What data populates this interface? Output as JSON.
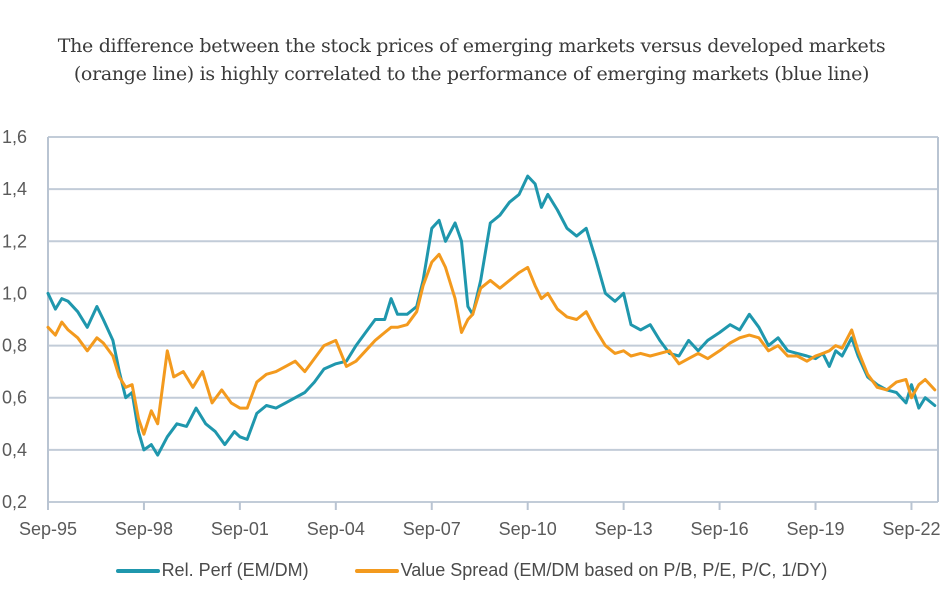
{
  "title_lines": [
    "The difference between the stock prices of emerging markets versus developed markets",
    "(orange line) is highly correlated to the performance of emerging markets (blue line)"
  ],
  "colors": {
    "rel_perf": "#1f97ad",
    "value_spread": "#f39a1e",
    "grid": "#c2ccd8",
    "axis": "#b9c4d2"
  },
  "chart_data": {
    "type": "line",
    "title": "The difference between the stock prices of emerging markets versus developed markets (orange line) is highly correlated to the performance of emerging markets (blue line)",
    "xlabel": "",
    "ylabel": "",
    "ylim": [
      0.2,
      1.6
    ],
    "yticks": [
      "0,2",
      "0,4",
      "0,6",
      "0,8",
      "1,0",
      "1,2",
      "1,4",
      "1,6"
    ],
    "ytick_values": [
      0.2,
      0.4,
      0.6,
      0.8,
      1.0,
      1.2,
      1.4,
      1.6
    ],
    "xlim": [
      1995.67,
      2023.5
    ],
    "xticks": [
      "Sep-95",
      "Sep-98",
      "Sep-01",
      "Sep-04",
      "Sep-07",
      "Sep-10",
      "Sep-13",
      "Sep-16",
      "Sep-19",
      "Sep-22"
    ],
    "xtick_values": [
      1995.67,
      1998.67,
      2001.67,
      2004.67,
      2007.67,
      2010.67,
      2013.67,
      2016.67,
      2019.67,
      2022.67
    ],
    "grid": "horizontal",
    "legend_position": "bottom",
    "series": [
      {
        "name": "Rel. Perf (EM/DM)",
        "color": "#1f97ad",
        "x": [
          1995.67,
          1995.9,
          1996.1,
          1996.3,
          1996.6,
          1996.9,
          1997.2,
          1997.4,
          1997.7,
          1997.9,
          1998.1,
          1998.3,
          1998.5,
          1998.67,
          1998.9,
          1999.1,
          1999.4,
          1999.7,
          2000.0,
          2000.3,
          2000.6,
          2000.9,
          2001.2,
          2001.5,
          2001.67,
          2001.9,
          2002.2,
          2002.5,
          2002.8,
          2003.1,
          2003.4,
          2003.7,
          2004.0,
          2004.3,
          2004.67,
          2005.0,
          2005.3,
          2005.6,
          2005.9,
          2006.2,
          2006.4,
          2006.6,
          2006.9,
          2007.2,
          2007.4,
          2007.67,
          2007.9,
          2008.1,
          2008.4,
          2008.6,
          2008.8,
          2008.95,
          2009.2,
          2009.5,
          2009.8,
          2010.1,
          2010.4,
          2010.67,
          2010.9,
          2011.1,
          2011.3,
          2011.6,
          2011.9,
          2012.2,
          2012.5,
          2012.8,
          2013.1,
          2013.4,
          2013.67,
          2013.9,
          2014.2,
          2014.5,
          2014.8,
          2015.1,
          2015.4,
          2015.7,
          2016.0,
          2016.3,
          2016.67,
          2017.0,
          2017.3,
          2017.6,
          2017.9,
          2018.2,
          2018.5,
          2018.8,
          2019.1,
          2019.4,
          2019.67,
          2019.9,
          2020.1,
          2020.3,
          2020.5,
          2020.8,
          2021.0,
          2021.3,
          2021.6,
          2021.9,
          2022.2,
          2022.5,
          2022.67,
          2022.9,
          2023.1,
          2023.4
        ],
        "values": [
          1.0,
          0.94,
          0.98,
          0.97,
          0.93,
          0.87,
          0.95,
          0.9,
          0.82,
          0.7,
          0.6,
          0.62,
          0.47,
          0.4,
          0.42,
          0.38,
          0.45,
          0.5,
          0.49,
          0.56,
          0.5,
          0.47,
          0.42,
          0.47,
          0.45,
          0.44,
          0.54,
          0.57,
          0.56,
          0.58,
          0.6,
          0.62,
          0.66,
          0.71,
          0.73,
          0.74,
          0.8,
          0.85,
          0.9,
          0.9,
          0.98,
          0.92,
          0.92,
          0.95,
          1.05,
          1.25,
          1.28,
          1.2,
          1.27,
          1.2,
          0.95,
          0.92,
          1.05,
          1.27,
          1.3,
          1.35,
          1.38,
          1.45,
          1.42,
          1.33,
          1.38,
          1.32,
          1.25,
          1.22,
          1.25,
          1.13,
          1.0,
          0.97,
          1.0,
          0.88,
          0.86,
          0.88,
          0.82,
          0.77,
          0.76,
          0.82,
          0.78,
          0.82,
          0.85,
          0.88,
          0.86,
          0.92,
          0.87,
          0.8,
          0.83,
          0.78,
          0.77,
          0.76,
          0.75,
          0.77,
          0.72,
          0.78,
          0.76,
          0.83,
          0.76,
          0.68,
          0.65,
          0.63,
          0.62,
          0.58,
          0.65,
          0.56,
          0.6,
          0.57
        ]
      },
      {
        "name": "Value Spread (EM/DM based on P/B, P/E, P/C, 1/DY)",
        "color": "#f39a1e",
        "x": [
          1995.67,
          1995.9,
          1996.1,
          1996.3,
          1996.6,
          1996.9,
          1997.2,
          1997.4,
          1997.7,
          1997.9,
          1998.1,
          1998.3,
          1998.5,
          1998.67,
          1998.9,
          1999.1,
          1999.4,
          1999.6,
          1999.9,
          2000.2,
          2000.5,
          2000.8,
          2001.1,
          2001.4,
          2001.67,
          2001.9,
          2002.2,
          2002.5,
          2002.8,
          2003.1,
          2003.4,
          2003.7,
          2004.0,
          2004.3,
          2004.67,
          2005.0,
          2005.3,
          2005.6,
          2005.9,
          2006.2,
          2006.4,
          2006.6,
          2006.9,
          2007.2,
          2007.4,
          2007.67,
          2007.9,
          2008.1,
          2008.4,
          2008.6,
          2008.8,
          2008.95,
          2009.2,
          2009.5,
          2009.8,
          2010.1,
          2010.4,
          2010.67,
          2010.9,
          2011.1,
          2011.3,
          2011.6,
          2011.9,
          2012.2,
          2012.5,
          2012.8,
          2013.1,
          2013.4,
          2013.67,
          2013.9,
          2014.2,
          2014.5,
          2014.8,
          2015.1,
          2015.4,
          2015.7,
          2016.0,
          2016.3,
          2016.67,
          2017.0,
          2017.3,
          2017.6,
          2017.9,
          2018.2,
          2018.5,
          2018.8,
          2019.1,
          2019.4,
          2019.67,
          2019.9,
          2020.1,
          2020.3,
          2020.5,
          2020.8,
          2021.0,
          2021.3,
          2021.6,
          2021.9,
          2022.2,
          2022.5,
          2022.67,
          2022.9,
          2023.1,
          2023.4
        ],
        "values": [
          0.87,
          0.84,
          0.89,
          0.86,
          0.83,
          0.78,
          0.83,
          0.81,
          0.76,
          0.68,
          0.64,
          0.65,
          0.52,
          0.46,
          0.55,
          0.5,
          0.78,
          0.68,
          0.7,
          0.64,
          0.7,
          0.58,
          0.63,
          0.58,
          0.56,
          0.56,
          0.66,
          0.69,
          0.7,
          0.72,
          0.74,
          0.7,
          0.75,
          0.8,
          0.82,
          0.72,
          0.74,
          0.78,
          0.82,
          0.85,
          0.87,
          0.87,
          0.88,
          0.93,
          1.03,
          1.12,
          1.15,
          1.1,
          0.98,
          0.85,
          0.9,
          0.92,
          1.02,
          1.05,
          1.02,
          1.05,
          1.08,
          1.1,
          1.03,
          0.98,
          1.0,
          0.94,
          0.91,
          0.9,
          0.93,
          0.86,
          0.8,
          0.77,
          0.78,
          0.76,
          0.77,
          0.76,
          0.77,
          0.78,
          0.73,
          0.75,
          0.77,
          0.75,
          0.78,
          0.81,
          0.83,
          0.84,
          0.83,
          0.78,
          0.8,
          0.76,
          0.76,
          0.74,
          0.76,
          0.77,
          0.78,
          0.8,
          0.79,
          0.86,
          0.78,
          0.69,
          0.64,
          0.63,
          0.66,
          0.67,
          0.6,
          0.65,
          0.67,
          0.63
        ]
      }
    ]
  }
}
